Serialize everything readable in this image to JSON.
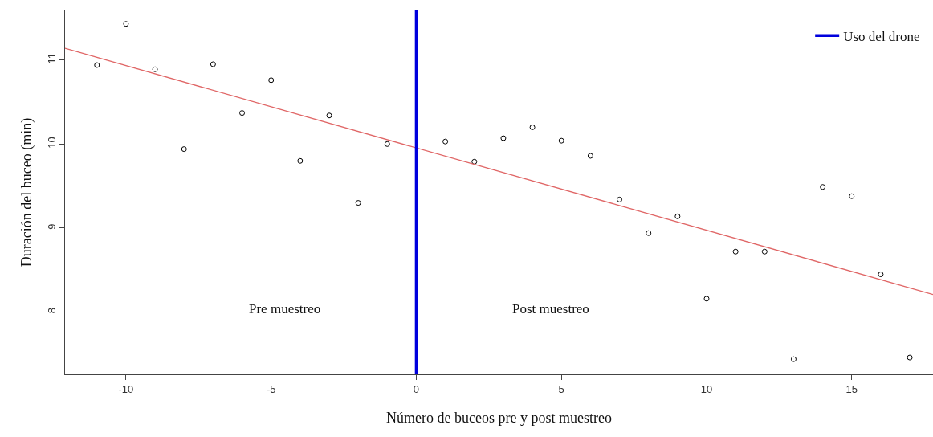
{
  "chart_data": {
    "type": "scatter",
    "xlabel": "Número de buceos pre y post muestreo",
    "ylabel": "Duración del buceo (min)",
    "xlim": [
      -12.1,
      17.8
    ],
    "xticks": [
      -10,
      -5,
      0,
      5,
      10,
      15
    ],
    "ylim": [
      7.26,
      11.59
    ],
    "yticks": [
      8,
      9,
      10,
      11
    ],
    "legend": "top right",
    "series": [
      {
        "color": "#000000",
        "marker": "circle",
        "x": [
          -11,
          -10,
          -9,
          -8,
          -7,
          -6,
          -5,
          -4,
          -3,
          -2,
          -1,
          1,
          2,
          3,
          4,
          5,
          6,
          7,
          8,
          9,
          10,
          11,
          12,
          13,
          14,
          15,
          16,
          17
        ],
        "values": [
          10.94,
          11.43,
          10.89,
          9.94,
          10.95,
          10.37,
          10.76,
          9.8,
          10.34,
          9.3,
          10.0,
          10.03,
          9.79,
          10.07,
          10.2,
          10.04,
          9.86,
          9.34,
          8.94,
          9.14,
          8.16,
          8.72,
          8.72,
          7.44,
          9.49,
          9.38,
          8.45,
          7.46
        ]
      },
      {
        "type": "line",
        "color": "#e06666",
        "x": [
          -12.1,
          17.8
        ],
        "values": [
          11.14,
          8.21
        ]
      },
      {
        "type": "line",
        "name": "Uso del drone",
        "color": "#0000dd",
        "x": [
          0,
          0
        ],
        "values": [
          7.26,
          11.59
        ]
      }
    ],
    "annotations": [
      "Pre muestreo",
      "Post muestreo"
    ]
  }
}
